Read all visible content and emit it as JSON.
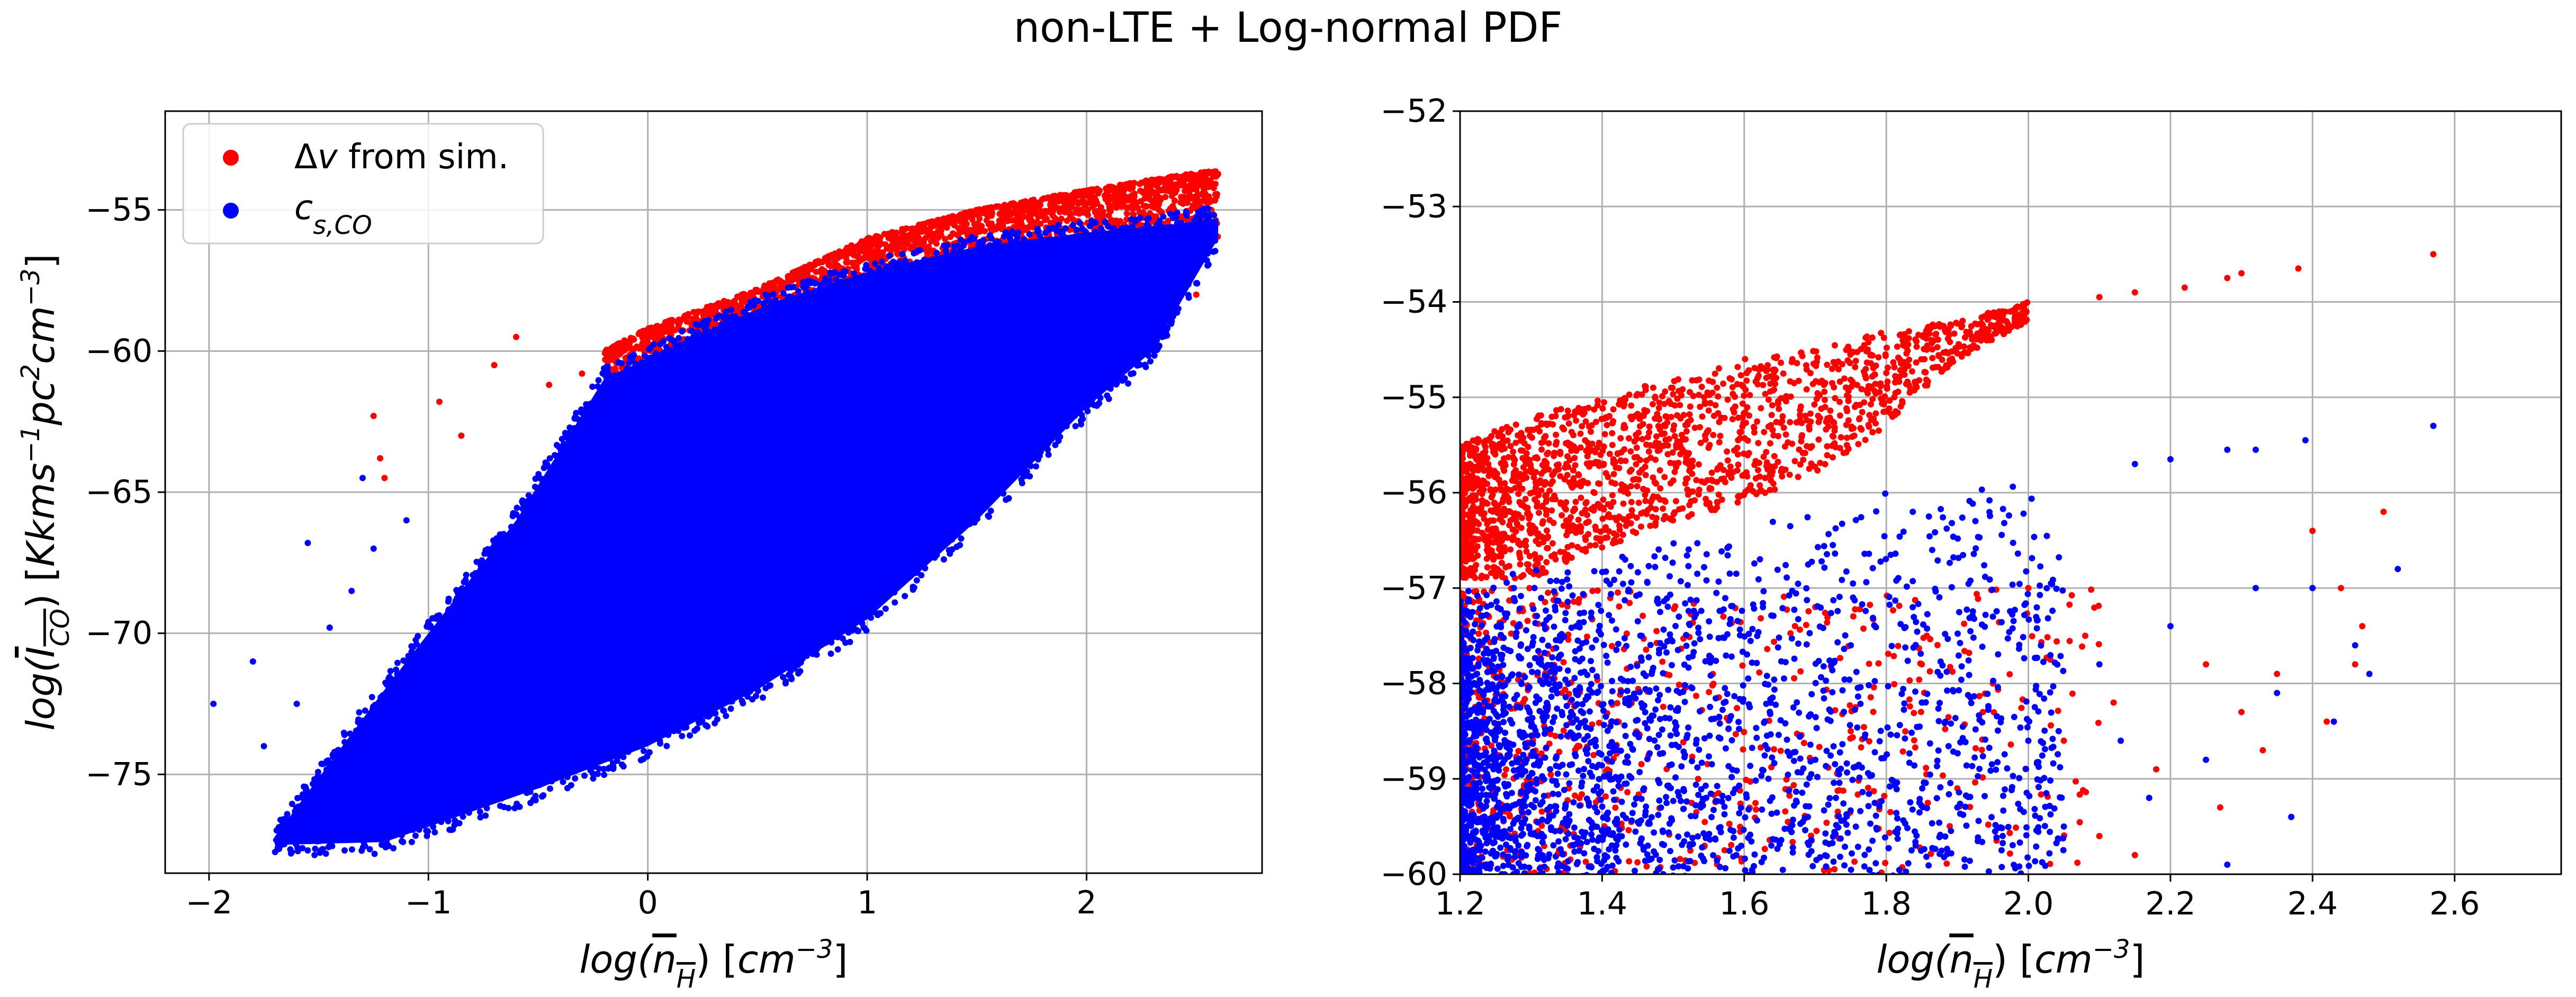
{
  "figure": {
    "title": "non-LTE + Log-normal PDF"
  },
  "chart_data": [
    {
      "type": "scatter",
      "panel": "left",
      "title": "",
      "xlabel": "log(n_H) [cm^-3]",
      "ylabel": "log(I_CO) [Kkms^-1pc^2cm^-3]",
      "xlim": [
        -2.2,
        2.8
      ],
      "ylim": [
        -78.5,
        -51.5
      ],
      "xticks": [
        -2,
        -1,
        0,
        1,
        2
      ],
      "xtick_labels": [
        "−2",
        "−1",
        "0",
        "1",
        "2"
      ],
      "yticks": [
        -75,
        -70,
        -65,
        -60,
        -55
      ],
      "ytick_labels": [
        "−75",
        "−70",
        "−65",
        "−60",
        "−55"
      ],
      "grid": true,
      "legend": {
        "placement": "upper-left",
        "entries": [
          {
            "label": "Δv from sim.",
            "color": "#ff0000"
          },
          {
            "label": "c_s,CO",
            "color": "#0000ff"
          }
        ]
      },
      "series": [
        {
          "name": "Δv from sim.",
          "color": "#ff0000",
          "upper_edge": [
            [
              -0.2,
              -60.0
            ],
            [
              0.0,
              -59.2
            ],
            [
              0.5,
              -57.8
            ],
            [
              1.0,
              -56.0
            ],
            [
              1.5,
              -55.0
            ],
            [
              2.0,
              -54.3
            ],
            [
              2.4,
              -53.8
            ],
            [
              2.6,
              -53.6
            ]
          ],
          "points": [
            [
              -1.25,
              -62.3
            ],
            [
              -1.22,
              -63.8
            ],
            [
              -1.2,
              -64.5
            ],
            [
              -0.95,
              -61.8
            ],
            [
              -0.85,
              -63.0
            ],
            [
              -0.7,
              -60.5
            ],
            [
              -0.6,
              -59.5
            ],
            [
              -0.45,
              -61.2
            ],
            [
              -0.3,
              -60.8
            ],
            [
              1.5,
              -58.5
            ],
            [
              1.6,
              -60.0
            ],
            [
              1.7,
              -62.0
            ],
            [
              1.8,
              -58.0
            ],
            [
              1.9,
              -61.0
            ],
            [
              2.0,
              -57.5
            ],
            [
              2.1,
              -59.0
            ],
            [
              2.2,
              -57.0
            ],
            [
              2.3,
              -58.5
            ],
            [
              2.35,
              -56.5
            ],
            [
              2.45,
              -57.0
            ],
            [
              2.5,
              -58.0
            ]
          ]
        },
        {
          "name": "c_s,CO",
          "color": "#0000ff",
          "upper_edge": [
            [
              -1.7,
              -77.2
            ],
            [
              -1.2,
              -72.0
            ],
            [
              -0.6,
              -66.0
            ],
            [
              -0.2,
              -61.0
            ],
            [
              0.2,
              -59.5
            ],
            [
              0.6,
              -58.2
            ],
            [
              1.0,
              -57.2
            ],
            [
              1.5,
              -56.3
            ],
            [
              2.0,
              -55.8
            ],
            [
              2.3,
              -55.6
            ],
            [
              2.6,
              -55.3
            ]
          ],
          "lower_edge": [
            [
              -1.7,
              -77.5
            ],
            [
              -1.2,
              -77.4
            ],
            [
              -0.5,
              -75.5
            ],
            [
              0.0,
              -74.0
            ],
            [
              0.5,
              -72.0
            ],
            [
              1.0,
              -69.5
            ],
            [
              1.5,
              -66.0
            ],
            [
              2.0,
              -62.0
            ],
            [
              2.3,
              -60.0
            ],
            [
              2.6,
              -56.0
            ]
          ],
          "points": [
            [
              -1.98,
              -72.5
            ],
            [
              -1.8,
              -71.0
            ],
            [
              -1.75,
              -74.0
            ],
            [
              -1.6,
              -72.5
            ],
            [
              -1.55,
              -66.8
            ],
            [
              -1.45,
              -69.8
            ],
            [
              -1.35,
              -68.5
            ],
            [
              -1.3,
              -64.5
            ],
            [
              -1.25,
              -67.0
            ],
            [
              -1.1,
              -66.0
            ],
            [
              1.7,
              -64.0
            ],
            [
              1.8,
              -62.5
            ],
            [
              1.9,
              -60.5
            ],
            [
              2.0,
              -61.5
            ],
            [
              2.1,
              -59.5
            ],
            [
              2.2,
              -58.0
            ],
            [
              2.35,
              -57.5
            ],
            [
              2.45,
              -56.5
            ],
            [
              2.55,
              -55.3
            ]
          ]
        }
      ]
    },
    {
      "type": "scatter",
      "panel": "right",
      "title": "",
      "xlabel": "log(n_H) [cm^-3]",
      "ylabel": "",
      "xlim": [
        1.2,
        2.75
      ],
      "ylim": [
        -60,
        -52
      ],
      "xticks": [
        1.2,
        1.4,
        1.6,
        1.8,
        2.0,
        2.2,
        2.4,
        2.6
      ],
      "xtick_labels": [
        "1.2",
        "1.4",
        "1.6",
        "1.8",
        "2.0",
        "2.2",
        "2.4",
        "2.6"
      ],
      "yticks": [
        -60,
        -59,
        -58,
        -57,
        -56,
        -55,
        -54,
        -53,
        -52
      ],
      "ytick_labels": [
        "−60",
        "−59",
        "−58",
        "−57",
        "−56",
        "−55",
        "−54",
        "−53",
        "−52"
      ],
      "grid": true,
      "series": [
        {
          "name": "Δv from sim.",
          "color": "#ff0000",
          "band": [
            [
              1.2,
              -56.9,
              -55.5
            ],
            [
              1.3,
              -56.9,
              -55.2
            ],
            [
              1.4,
              -56.6,
              -55.0
            ],
            [
              1.5,
              -56.3,
              -54.8
            ],
            [
              1.6,
              -56.1,
              -54.6
            ],
            [
              1.7,
              -55.8,
              -54.5
            ],
            [
              1.8,
              -55.3,
              -54.3
            ],
            [
              1.9,
              -54.6,
              -54.2
            ],
            [
              2.0,
              -54.2,
              -54.0
            ]
          ],
          "points": [
            [
              2.1,
              -53.95
            ],
            [
              2.15,
              -53.9
            ],
            [
              2.22,
              -53.85
            ],
            [
              2.28,
              -53.75
            ],
            [
              2.3,
              -53.7
            ],
            [
              2.38,
              -53.65
            ],
            [
              2.57,
              -53.5
            ],
            [
              1.7,
              -57.2
            ],
            [
              1.75,
              -58.5
            ],
            [
              1.85,
              -57.8
            ],
            [
              1.9,
              -59.1
            ],
            [
              1.95,
              -58.0
            ],
            [
              2.0,
              -57.0
            ],
            [
              2.05,
              -58.6
            ],
            [
              2.08,
              -57.5
            ],
            [
              2.1,
              -59.6
            ],
            [
              2.12,
              -58.2
            ],
            [
              2.15,
              -59.8
            ],
            [
              2.18,
              -58.9
            ],
            [
              2.25,
              -57.8
            ],
            [
              2.27,
              -59.3
            ],
            [
              2.3,
              -58.3
            ],
            [
              2.33,
              -58.7
            ],
            [
              2.35,
              -57.9
            ],
            [
              2.37,
              -59.4
            ],
            [
              2.4,
              -56.4
            ],
            [
              2.42,
              -58.4
            ],
            [
              2.44,
              -57.0
            ],
            [
              2.46,
              -57.8
            ],
            [
              2.47,
              -57.4
            ],
            [
              2.5,
              -56.2
            ]
          ]
        },
        {
          "name": "c_s,CO",
          "color": "#0000ff",
          "upper_edge": [
            [
              1.2,
              -57.0
            ],
            [
              1.4,
              -56.6
            ],
            [
              1.6,
              -56.3
            ],
            [
              1.7,
              -56.15
            ],
            [
              1.8,
              -56.0
            ],
            [
              1.9,
              -55.9
            ],
            [
              2.0,
              -55.85
            ],
            [
              2.05,
              -55.8
            ]
          ],
          "points": [
            [
              2.15,
              -55.7
            ],
            [
              2.2,
              -55.65
            ],
            [
              2.28,
              -55.55
            ],
            [
              2.32,
              -55.55
            ],
            [
              2.39,
              -55.45
            ],
            [
              2.57,
              -55.3
            ],
            [
              1.7,
              -58.8
            ],
            [
              1.75,
              -57.6
            ],
            [
              1.85,
              -58.2
            ],
            [
              1.9,
              -59.3
            ],
            [
              1.95,
              -57.3
            ],
            [
              2.0,
              -58.6
            ],
            [
              2.05,
              -59.5
            ],
            [
              2.1,
              -57.8
            ],
            [
              2.13,
              -58.6
            ],
            [
              2.17,
              -59.2
            ],
            [
              2.2,
              -57.4
            ],
            [
              2.25,
              -58.8
            ],
            [
              2.28,
              -59.9
            ],
            [
              2.32,
              -57.0
            ],
            [
              2.35,
              -58.1
            ],
            [
              2.37,
              -59.4
            ],
            [
              2.4,
              -57.0
            ],
            [
              2.43,
              -58.4
            ],
            [
              2.46,
              -57.6
            ],
            [
              2.48,
              -57.9
            ],
            [
              2.52,
              -56.8
            ]
          ]
        }
      ]
    }
  ]
}
